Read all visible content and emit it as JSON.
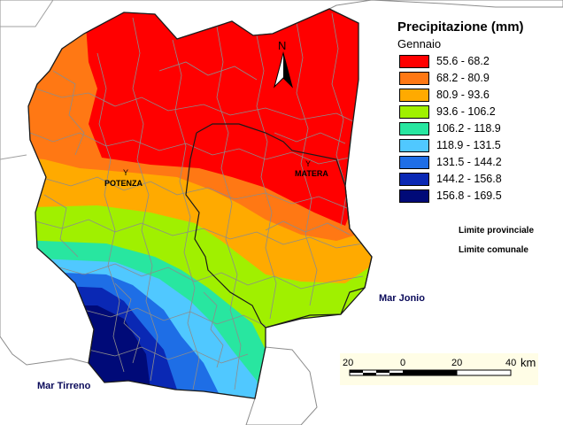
{
  "legend": {
    "title": "Precipitazione (mm)",
    "subtitle": "Gennaio",
    "classes": [
      {
        "label": "55.6 - 68.2",
        "color": "#ff0000"
      },
      {
        "label": "68.2 - 80.9",
        "color": "#ff7814"
      },
      {
        "label": "80.9 - 93.6",
        "color": "#ffaa00"
      },
      {
        "label": "93.6 - 106.2",
        "color": "#a0f000"
      },
      {
        "label": "106.2 - 118.9",
        "color": "#28e6a0"
      },
      {
        "label": "118.9 - 131.5",
        "color": "#50c8ff"
      },
      {
        "label": "131.5 - 144.2",
        "color": "#1e6ee6"
      },
      {
        "label": "144.2 - 156.8",
        "color": "#0a28b4"
      },
      {
        "label": "156.8 - 169.5",
        "color": "#000a78"
      }
    ],
    "boundaries": {
      "provincial": "Limite provinciale",
      "municipal": "Limite comunale"
    }
  },
  "map": {
    "cities": [
      {
        "name": "POTENZA",
        "mark": "Y"
      },
      {
        "name": "MATERA",
        "mark": "Y"
      }
    ],
    "seas": [
      "Mar Jonio",
      "Mar Tirreno"
    ],
    "north": "N"
  },
  "scale": {
    "ticks": [
      "20",
      "0",
      "20",
      "40"
    ],
    "unit": "km"
  }
}
